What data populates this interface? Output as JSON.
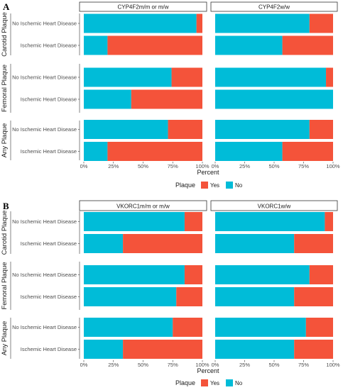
{
  "colors": {
    "yes": "#F4533A",
    "no": "#00BCD8"
  },
  "chart_data": [
    {
      "panel": "A",
      "type": "bar",
      "orientation": "horizontal",
      "stacked": true,
      "xlabel": "Percent",
      "xticks": [
        "0%",
        "25%",
        "50%",
        "75%",
        "100%"
      ],
      "xlim": [
        0,
        100
      ],
      "facets": [
        "CYP4F2m/m or m/w",
        "CYP4F2w/w"
      ],
      "groups": [
        "Carotid Plaque",
        "Femoral Plaque",
        "Any Plaque"
      ],
      "categories": [
        "No Ischemic Heart Disease",
        "Ischemic Heart Disease"
      ],
      "legend": {
        "title": "Plaque",
        "items": [
          "Yes",
          "No"
        ],
        "position": "bottom"
      },
      "series_no_percent": {
        "CYP4F2m/m or m/w": {
          "Carotid Plaque": [
            95,
            20
          ],
          "Femoral Plaque": [
            74,
            40
          ],
          "Any Plaque": [
            71,
            20
          ]
        },
        "CYP4F2w/w": {
          "Carotid Plaque": [
            80,
            57
          ],
          "Femoral Plaque": [
            94,
            100
          ],
          "Any Plaque": [
            80,
            57
          ]
        }
      }
    },
    {
      "panel": "B",
      "type": "bar",
      "orientation": "horizontal",
      "stacked": true,
      "xlabel": "Percent",
      "xticks": [
        "0%",
        "25%",
        "50%",
        "75%",
        "100%"
      ],
      "xlim": [
        0,
        100
      ],
      "facets": [
        "VKORC1m/m or m/w",
        "VKORC1w/w"
      ],
      "groups": [
        "Carotid Plaque",
        "Femoral Plaque",
        "Any Plaque"
      ],
      "categories": [
        "No Ischemic Heart Disease",
        "Ischemic Heart Disease"
      ],
      "legend": {
        "title": "Plaque",
        "items": [
          "Yes",
          "No"
        ],
        "position": "bottom"
      },
      "series_no_percent": {
        "VKORC1m/m or m/w": {
          "Carotid Plaque": [
            85,
            33
          ],
          "Femoral Plaque": [
            85,
            78
          ],
          "Any Plaque": [
            75,
            33
          ]
        },
        "VKORC1w/w": {
          "Carotid Plaque": [
            93,
            67
          ],
          "Femoral Plaque": [
            80,
            67
          ],
          "Any Plaque": [
            77,
            67
          ]
        }
      }
    }
  ]
}
